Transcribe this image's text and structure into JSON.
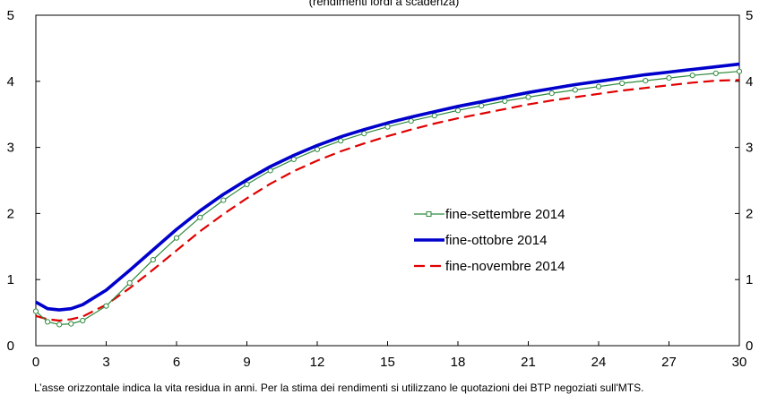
{
  "chart_data": {
    "type": "line",
    "title": "(rendimenti lordi a scadenza)",
    "xlabel": "",
    "ylabel": "",
    "xlim": [
      0,
      30
    ],
    "ylim": [
      0,
      5
    ],
    "xticks": [
      0,
      3,
      6,
      9,
      12,
      15,
      18,
      21,
      24,
      27,
      30
    ],
    "yticks": [
      0,
      1,
      2,
      3,
      4,
      5
    ],
    "grid": false,
    "legend_position": "center-right",
    "x": [
      0,
      0.5,
      1,
      1.5,
      2,
      3,
      4,
      5,
      6,
      7,
      8,
      9,
      10,
      11,
      12,
      13,
      14,
      15,
      16,
      17,
      18,
      19,
      20,
      21,
      22,
      23,
      24,
      25,
      26,
      27,
      28,
      29,
      30
    ],
    "series": [
      {
        "name": "fine-settembre 2014",
        "color": "#2e8b3e",
        "style": "line-markers",
        "values": [
          0.52,
          0.36,
          0.32,
          0.33,
          0.38,
          0.6,
          0.95,
          1.3,
          1.63,
          1.94,
          2.2,
          2.44,
          2.65,
          2.82,
          2.97,
          3.1,
          3.21,
          3.31,
          3.4,
          3.48,
          3.56,
          3.63,
          3.7,
          3.76,
          3.82,
          3.87,
          3.92,
          3.97,
          4.01,
          4.05,
          4.09,
          4.12,
          4.15
        ]
      },
      {
        "name": "fine-ottobre 2014",
        "color": "#0000cc",
        "style": "solid",
        "values": [
          0.66,
          0.56,
          0.54,
          0.56,
          0.62,
          0.84,
          1.14,
          1.45,
          1.76,
          2.04,
          2.29,
          2.51,
          2.71,
          2.88,
          3.03,
          3.16,
          3.27,
          3.37,
          3.46,
          3.54,
          3.62,
          3.69,
          3.76,
          3.83,
          3.89,
          3.95,
          4.0,
          4.05,
          4.1,
          4.14,
          4.18,
          4.22,
          4.26
        ]
      },
      {
        "name": "fine-novembre 2014",
        "color": "#e00000",
        "style": "dashed",
        "values": [
          0.45,
          0.4,
          0.38,
          0.4,
          0.44,
          0.62,
          0.87,
          1.15,
          1.44,
          1.73,
          1.99,
          2.23,
          2.45,
          2.64,
          2.8,
          2.94,
          3.06,
          3.17,
          3.27,
          3.36,
          3.44,
          3.51,
          3.58,
          3.65,
          3.71,
          3.76,
          3.81,
          3.86,
          3.9,
          3.94,
          3.98,
          4.01,
          4.02
        ]
      }
    ]
  },
  "footnote": "L’asse orizzontale indica la vita residua in anni. Per la stima dei rendimenti si utilizzano le quotazioni dei BTP negoziati sull'MTS."
}
